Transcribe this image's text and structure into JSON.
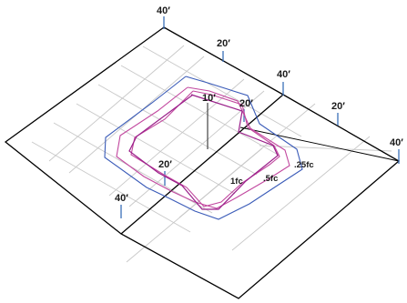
{
  "dimension_labels": {
    "far_corner_40": "40′",
    "back_left_edge_20": "20′",
    "back_right_40": "40′",
    "right_upper_20": "20′",
    "right_corner_40": "40′",
    "pole_height_10": "10′",
    "pole_offset_20": "20′",
    "front_left_20": "20′",
    "front_left_40": "40′"
  },
  "isolux_labels": {
    "one_fc": "1fc",
    "half_fc": ".5fc",
    "quarter_fc": ".25fc"
  },
  "colors": {
    "grid_heavy": "#000000",
    "grid_light": "#c8c8c8",
    "contour_1fc": "#9a1f8a",
    "contour_half_fc": "#c2489f",
    "contour_quarter_fc": "#3a5bb8",
    "tick_blue": "#3a6fb8",
    "pole": "#444444"
  }
}
